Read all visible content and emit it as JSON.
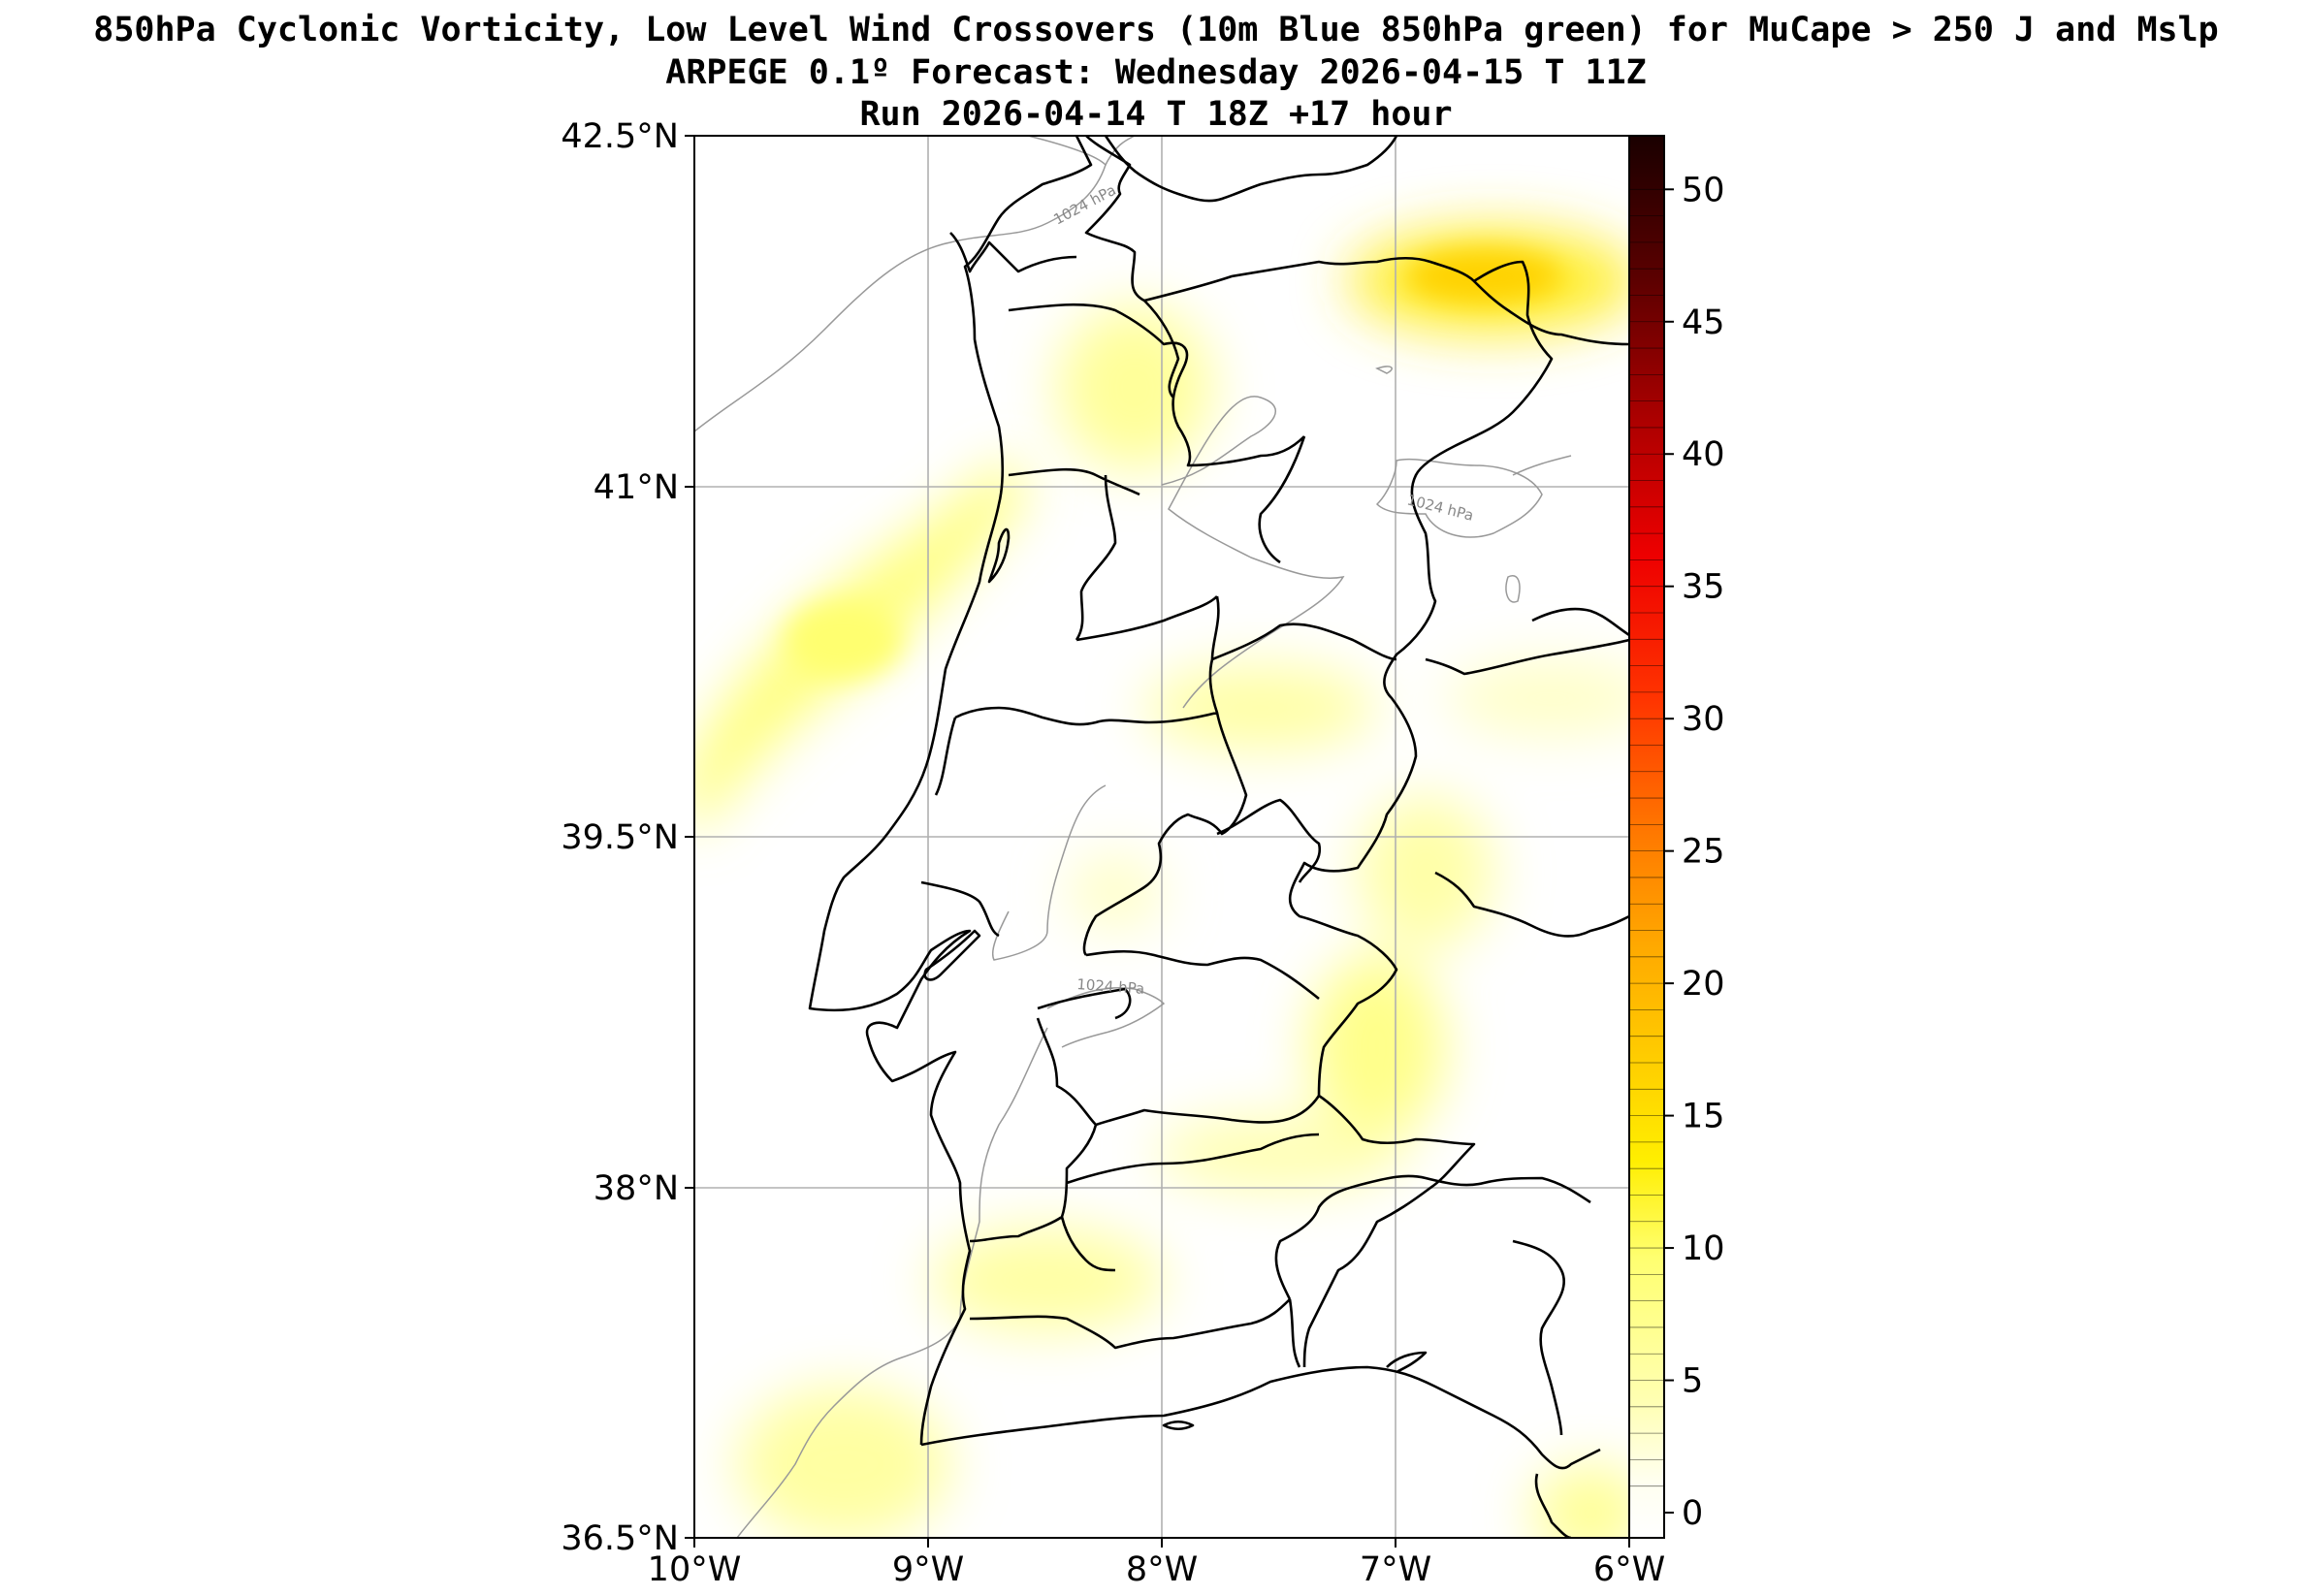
{
  "title": {
    "line1": "850hPa Cyclonic Vorticity, Low Level Wind Crossovers (10m Blue 850hPa green) for MuCape > 250 J and Mslp",
    "line2": "ARPEGE 0.1º Forecast: Wednesday 2026-04-15 T 11Z",
    "line3": "Run 2026-04-14 T 18Z +17 hour"
  },
  "map": {
    "lon_range": [
      -10,
      -6
    ],
    "lat_range": [
      36.5,
      42.5
    ],
    "x_ticks": [
      "10°W",
      "9°W",
      "8°W",
      "7°W",
      "6°W"
    ],
    "y_ticks": [
      "42.5°N",
      "41°N",
      "39.5°N",
      "38°N",
      "36.5°N"
    ],
    "grid": true,
    "contour_labels": [
      "1024 hPa",
      "1024 hPa",
      "1024 hPa"
    ]
  },
  "colorbar": {
    "min": 0,
    "max": 51,
    "ticks": [
      "0",
      "5",
      "10",
      "15",
      "20",
      "25",
      "30",
      "35",
      "40",
      "45",
      "50"
    ],
    "colors": [
      "#ffffff",
      "#ffff66",
      "#ffee00",
      "#ffcc00",
      "#ff9900",
      "#ff6600",
      "#ff2200",
      "#dd0000",
      "#990000",
      "#550000",
      "#1a0000"
    ]
  },
  "colors": {
    "coast": "#000000",
    "grid": "#b0b0b0",
    "isobar": "#999999"
  }
}
